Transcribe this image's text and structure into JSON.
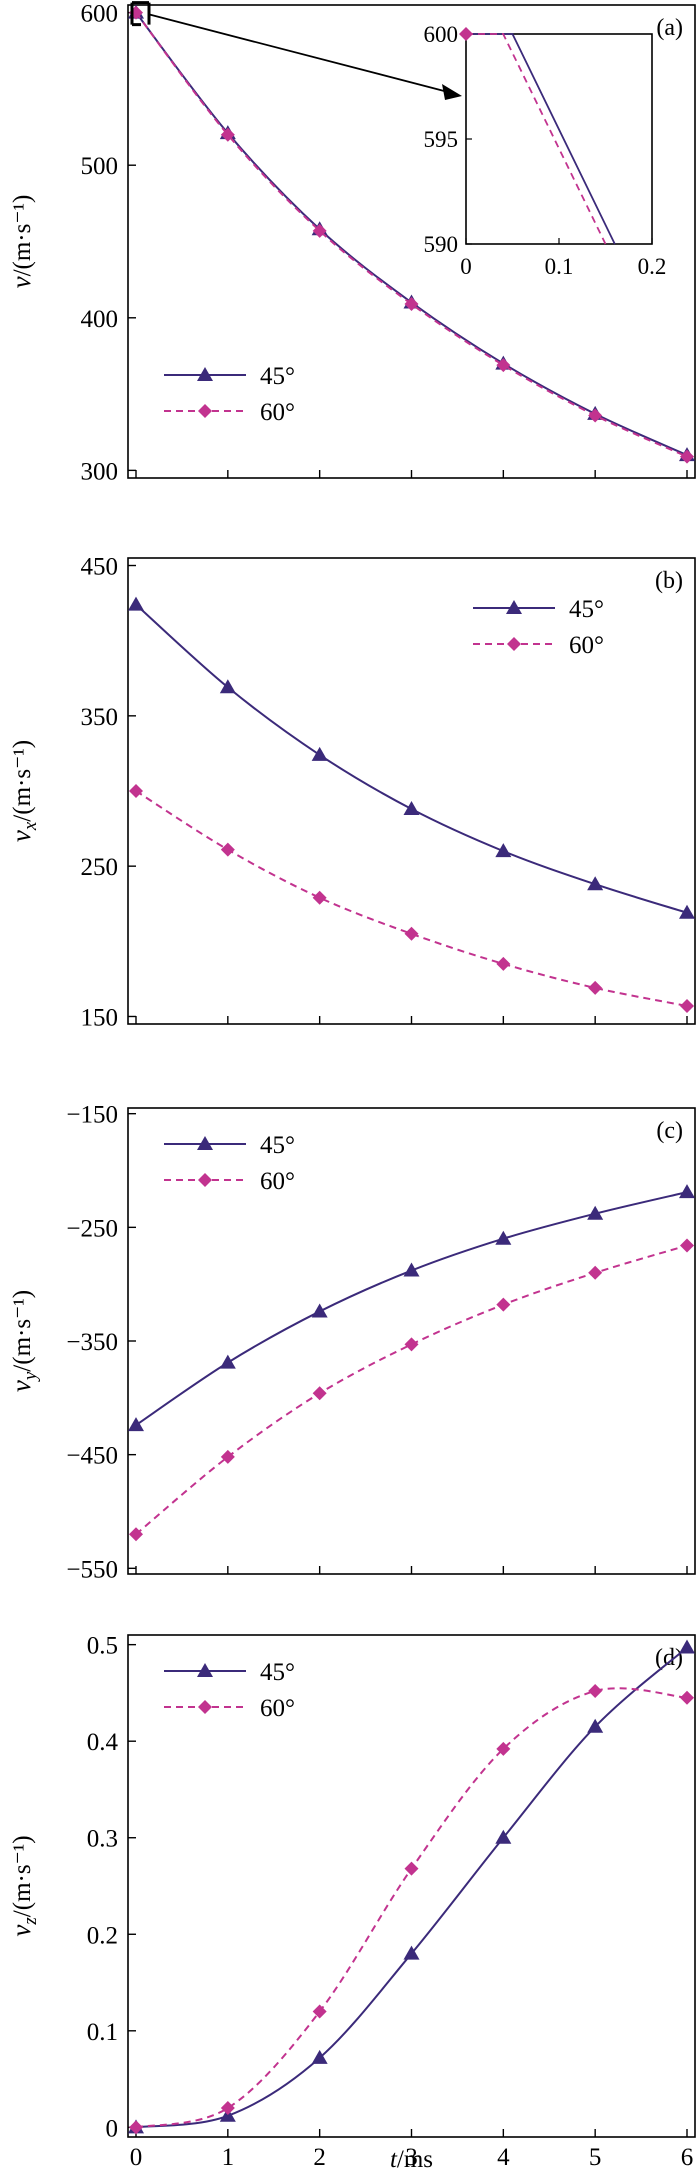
{
  "colors": {
    "series_45": "#3b2a7a",
    "series_60": "#c2338f",
    "axis": "#000000"
  },
  "x_axis": {
    "label": "t/ms",
    "label_var": "t",
    "label_unit": "/ms",
    "ticks": [
      "0",
      "1",
      "2",
      "3",
      "4",
      "5",
      "6"
    ]
  },
  "chart_data": [
    {
      "type": "line",
      "panel_label": "(a)",
      "ylabel_var": "v",
      "ylabel_sub": "",
      "ylabel_unit": "/(m·s⁻¹)",
      "ylim": [
        295,
        605
      ],
      "yticks": [
        300,
        400,
        500,
        600
      ],
      "xlim": [
        0,
        6
      ],
      "x": [
        0,
        1,
        2,
        3,
        4,
        5,
        6
      ],
      "series": [
        {
          "name": "45°",
          "marker": "triangle",
          "dash": "solid",
          "values": [
            600,
            521,
            458,
            410,
            370,
            337,
            310
          ]
        },
        {
          "name": "60°",
          "marker": "diamond",
          "dash": "dashed",
          "values": [
            600,
            520,
            457,
            409,
            369,
            336,
            309
          ]
        }
      ],
      "legend": "middle-left",
      "inset": {
        "xlim": [
          0,
          0.2
        ],
        "ylim": [
          590,
          600
        ],
        "xticks": [
          "0",
          "0.1",
          "0.2"
        ],
        "yticks": [
          "590",
          "595",
          "600"
        ],
        "series": [
          {
            "name": "45°",
            "x": [
              0,
              0.05,
              0.16
            ],
            "y": [
              600,
              600,
              590
            ]
          },
          {
            "name": "60°",
            "x": [
              0,
              0.04,
              0.15
            ],
            "y": [
              600,
              600,
              590
            ]
          }
        ]
      }
    },
    {
      "type": "line",
      "panel_label": "(b)",
      "ylabel_var": "v",
      "ylabel_sub": "x",
      "ylabel_unit": "/(m·s⁻¹)",
      "ylim": [
        145,
        455
      ],
      "yticks": [
        150,
        250,
        350,
        450
      ],
      "xlim": [
        0,
        6
      ],
      "x": [
        0,
        1,
        2,
        3,
        4,
        5,
        6
      ],
      "series": [
        {
          "name": "45°",
          "marker": "triangle",
          "dash": "solid",
          "values": [
            424,
            369,
            324,
            288,
            260,
            238,
            219
          ]
        },
        {
          "name": "60°",
          "marker": "diamond",
          "dash": "dashed",
          "values": [
            300,
            261,
            229,
            205,
            185,
            169,
            157
          ]
        }
      ],
      "legend": "top-right"
    },
    {
      "type": "line",
      "panel_label": "(c)",
      "ylabel_var": "v",
      "ylabel_sub": "y",
      "ylabel_unit": "/(m·s⁻¹)",
      "ylim": [
        -555,
        -145
      ],
      "yticks": [
        -550,
        -450,
        -350,
        -250,
        -150
      ],
      "ytick_labels": [
        "−550",
        "−450",
        "−350",
        "−250",
        "−150"
      ],
      "xlim": [
        0,
        6
      ],
      "x": [
        0,
        1,
        2,
        3,
        4,
        5,
        6
      ],
      "series": [
        {
          "name": "45°",
          "marker": "triangle",
          "dash": "solid",
          "values": [
            -424,
            -369,
            -324,
            -288,
            -260,
            -238,
            -219
          ]
        },
        {
          "name": "60°",
          "marker": "diamond",
          "dash": "dashed",
          "values": [
            -520,
            -452,
            -396,
            -353,
            -318,
            -290,
            -266
          ]
        }
      ],
      "legend": "top-left"
    },
    {
      "type": "line",
      "panel_label": "(d)",
      "ylabel_var": "v",
      "ylabel_sub": "z",
      "ylabel_unit": "/(m·s⁻¹)",
      "ylim": [
        -0.01,
        0.51
      ],
      "yticks": [
        0,
        0.1,
        0.2,
        0.3,
        0.4,
        0.5
      ],
      "ytick_labels": [
        "0",
        "0.1",
        "0.2",
        "0.3",
        "0.4",
        "0.5"
      ],
      "xlim": [
        0,
        6
      ],
      "x": [
        0,
        1,
        2,
        3,
        4,
        5,
        6
      ],
      "series": [
        {
          "name": "45°",
          "marker": "triangle",
          "dash": "solid",
          "values": [
            0,
            0.012,
            0.072,
            0.18,
            0.3,
            0.415,
            0.497
          ]
        },
        {
          "name": "60°",
          "marker": "diamond",
          "dash": "dashed",
          "values": [
            0,
            0.02,
            0.12,
            0.268,
            0.392,
            0.452,
            0.445
          ]
        }
      ],
      "legend": "top-left"
    }
  ]
}
